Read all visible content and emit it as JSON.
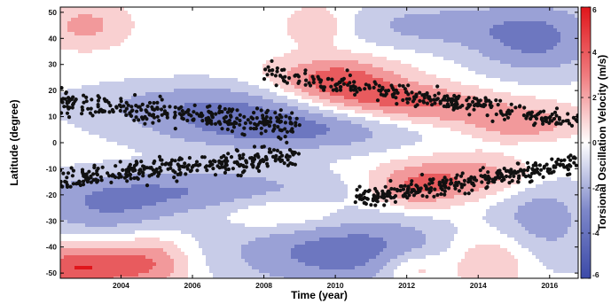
{
  "chart_data": {
    "type": "heatmap",
    "xlabel": "Time (year)",
    "ylabel": "Latitude (degree)",
    "colorbar_label": "Torsional Oscillation Velocity (m/s)",
    "xlim": [
      2002.3,
      2016.8
    ],
    "ylim": [
      -52,
      52
    ],
    "clim": [
      -6,
      6
    ],
    "x_ticks": [
      2004,
      2006,
      2008,
      2010,
      2012,
      2014,
      2016
    ],
    "y_ticks": [
      -50,
      -40,
      -30,
      -20,
      -10,
      0,
      10,
      20,
      30,
      40,
      50
    ],
    "colorbar_ticks": [
      -6,
      -4,
      -2,
      0,
      2,
      4,
      6
    ],
    "colormap": {
      "negative": "#3c4aa8",
      "zero": "#ffffff",
      "positive": "#e0161b"
    },
    "contour_levels": [
      -5,
      -3.5,
      -2,
      -0.6,
      0.6,
      2,
      3.5,
      5
    ],
    "features": [
      {
        "kind": "positive",
        "value": 4.5,
        "t": 2010.0,
        "lat": 24,
        "dt": 1.2,
        "dlat": 6
      },
      {
        "kind": "positive",
        "value": 3.0,
        "t": 2011.5,
        "lat": 17,
        "dt": 1.5,
        "dlat": 5
      },
      {
        "kind": "positive",
        "value": 2.5,
        "t": 2013.5,
        "lat": 12,
        "dt": 2.0,
        "dlat": 5
      },
      {
        "kind": "positive",
        "value": 2.5,
        "t": 2015.3,
        "lat": 6,
        "dt": 1.0,
        "dlat": 4
      },
      {
        "kind": "positive",
        "value": 3.5,
        "t": 2012.2,
        "lat": -17,
        "dt": 0.9,
        "dlat": 6
      },
      {
        "kind": "positive",
        "value": 3.0,
        "t": 2014.2,
        "lat": -13,
        "dt": 1.3,
        "dlat": 6
      },
      {
        "kind": "positive",
        "value": 5.0,
        "t": 2002.8,
        "lat": -48,
        "dt": 1.0,
        "dlat": 6
      },
      {
        "kind": "positive",
        "value": 3.5,
        "t": 2004.8,
        "lat": -46,
        "dt": 0.8,
        "dlat": 7
      },
      {
        "kind": "positive",
        "value": 3.5,
        "t": 2014.4,
        "lat": -44,
        "dt": 1.1,
        "dlat": 9
      },
      {
        "kind": "positive",
        "value": 3.0,
        "t": 2012.1,
        "lat": -48,
        "dt": 0.7,
        "dlat": 5
      },
      {
        "kind": "positive",
        "value": 2.2,
        "t": 2008.6,
        "lat": -27,
        "dt": 1.2,
        "dlat": 5
      },
      {
        "kind": "positive",
        "value": 2.5,
        "t": 2003.0,
        "lat": 45,
        "dt": 0.8,
        "dlat": 6
      },
      {
        "kind": "positive",
        "value": 2.0,
        "t": 2009.5,
        "lat": 45,
        "dt": 0.6,
        "dlat": 5
      },
      {
        "kind": "negative",
        "value": -4.0,
        "t": 2008.5,
        "lat": 5,
        "dt": 2.5,
        "dlat": 6
      },
      {
        "kind": "negative",
        "value": -3.0,
        "t": 2006.5,
        "lat": 15,
        "dt": 2.5,
        "dlat": 6
      },
      {
        "kind": "negative",
        "value": -3.0,
        "t": 2006.5,
        "lat": -18,
        "dt": 2.5,
        "dlat": 6
      },
      {
        "kind": "negative",
        "value": -4.5,
        "t": 2010.5,
        "lat": -42,
        "dt": 2.5,
        "dlat": 10
      },
      {
        "kind": "negative",
        "value": -3.0,
        "t": 2003.5,
        "lat": -25,
        "dt": 1.5,
        "dlat": 8
      },
      {
        "kind": "negative",
        "value": -4.0,
        "t": 2015.6,
        "lat": 40,
        "dt": 1.3,
        "dlat": 10
      },
      {
        "kind": "negative",
        "value": -2.5,
        "t": 2012.5,
        "lat": 45,
        "dt": 1.5,
        "dlat": 6
      },
      {
        "kind": "negative",
        "value": -3.0,
        "t": 2015.7,
        "lat": -30,
        "dt": 1.0,
        "dlat": 15
      }
    ],
    "scatter": {
      "name": "sunspots",
      "marker_color": "#111111",
      "bands": [
        {
          "t0": 2002.3,
          "t1": 2009.0,
          "lat0": 16,
          "lat1": 6,
          "spread": 7
        },
        {
          "t0": 2002.3,
          "t1": 2009.0,
          "lat0": -14,
          "lat1": -5,
          "spread": 7
        },
        {
          "t0": 2008.0,
          "t1": 2016.8,
          "lat0": 27,
          "lat1": 8,
          "spread": 6
        },
        {
          "t0": 2010.5,
          "t1": 2016.8,
          "lat0": -22,
          "lat1": -8,
          "spread": 6
        }
      ]
    }
  }
}
